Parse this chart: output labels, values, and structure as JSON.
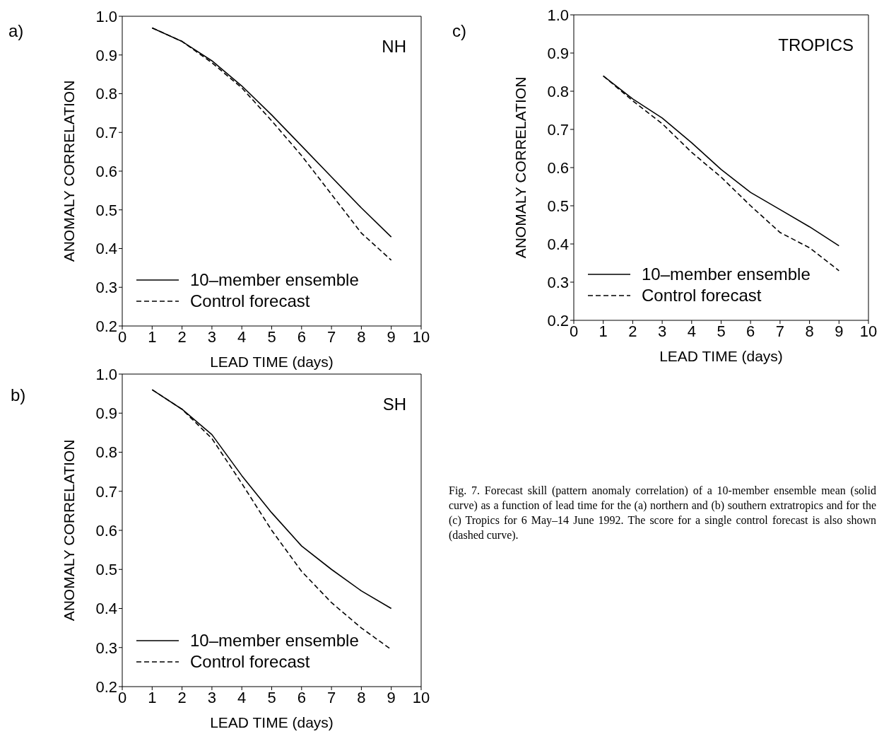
{
  "chart_data": [
    {
      "type": "line",
      "title": "a)",
      "xlabel": "LEAD TIME (days)",
      "ylabel": "ANOMALY CORRELATION",
      "annotations": [
        "NH"
      ],
      "x": [
        1,
        2,
        3,
        4,
        5,
        6,
        7,
        8,
        9
      ],
      "xlim": [
        0,
        10
      ],
      "xticks": [
        0,
        1,
        2,
        3,
        4,
        5,
        6,
        7,
        8,
        9,
        10
      ],
      "ylim": [
        0.2,
        1.0
      ],
      "yticks": [
        {
          "value": 0.2,
          "label": "0.2"
        },
        {
          "value": 0.3,
          "label": "0.3"
        },
        {
          "value": 0.4,
          "label": "0.4"
        },
        {
          "value": 0.5,
          "label": "0.5"
        },
        {
          "value": 0.6,
          "label": "0.6"
        },
        {
          "value": 0.7,
          "label": "0.7"
        },
        {
          "value": 0.8,
          "label": "0.8"
        },
        {
          "value": 0.9,
          "label": "0.9"
        },
        {
          "value": 1.0,
          "label": "1.0"
        }
      ],
      "legend": "bottom left",
      "marker": "none",
      "series": [
        {
          "name": "10–member ensemble",
          "color": "#000000",
          "line_style": "solid",
          "values": [
            0.97,
            0.935,
            0.885,
            0.82,
            0.745,
            0.665,
            0.585,
            0.505,
            0.43
          ]
        },
        {
          "name": "Control forecast",
          "color": "#000000",
          "line_style": "dashed",
          "values": [
            0.97,
            0.935,
            0.88,
            0.815,
            0.73,
            0.64,
            0.54,
            0.44,
            0.37
          ]
        }
      ]
    },
    {
      "type": "line",
      "title": "c)",
      "xlabel": "LEAD TIME (days)",
      "ylabel": "ANOMALY CORRELATION",
      "annotations": [
        "TROPICS"
      ],
      "x": [
        1,
        2,
        3,
        4,
        5,
        6,
        7,
        8,
        9
      ],
      "xlim": [
        0,
        10
      ],
      "xticks": [
        0,
        1,
        2,
        3,
        4,
        5,
        6,
        7,
        8,
        9,
        10
      ],
      "ylim": [
        0.2,
        1.0
      ],
      "yticks": [
        {
          "value": 0.2,
          "label": "0.2"
        },
        {
          "value": 0.3,
          "label": "0.3"
        },
        {
          "value": 0.4,
          "label": "0.4"
        },
        {
          "value": 0.5,
          "label": "0.5"
        },
        {
          "value": 0.6,
          "label": "0.6"
        },
        {
          "value": 0.7,
          "label": "0.7"
        },
        {
          "value": 0.8,
          "label": "0.8"
        },
        {
          "value": 0.9,
          "label": "0.9"
        },
        {
          "value": 1.0,
          "label": "1.0"
        }
      ],
      "legend": "bottom left",
      "marker": "none",
      "series": [
        {
          "name": "10–member ensemble",
          "color": "#000000",
          "line_style": "solid",
          "values": [
            0.84,
            0.78,
            0.73,
            0.665,
            0.595,
            0.535,
            0.49,
            0.445,
            0.395
          ]
        },
        {
          "name": "Control forecast",
          "color": "#000000",
          "line_style": "dashed",
          "values": [
            0.84,
            0.775,
            0.715,
            0.64,
            0.575,
            0.5,
            0.43,
            0.39,
            0.33
          ]
        }
      ]
    },
    {
      "type": "line",
      "title": "b)",
      "xlabel": "LEAD TIME (days)",
      "ylabel": "ANOMALY CORRELATION",
      "annotations": [
        "SH",
        "Fig. 7. Forecast skill (pattern anomaly correlation) of a 10-member ensemble mean (solid curve) as a function of lead time for the (a) northern and (b) southern extratropics and for the (c) Tropics for 6 May–14 June 1992. The score for a single control forecast is also shown (dashed curve)."
      ],
      "x": [
        1,
        2,
        3,
        4,
        5,
        6,
        7,
        8,
        9
      ],
      "xlim": [
        0,
        10
      ],
      "xticks": [
        0,
        1,
        2,
        3,
        4,
        5,
        6,
        7,
        8,
        9,
        10
      ],
      "ylim": [
        0.2,
        1.0
      ],
      "yticks": [
        {
          "value": 0.2,
          "label": "0.2"
        },
        {
          "value": 0.3,
          "label": "0.3"
        },
        {
          "value": 0.4,
          "label": "0.4"
        },
        {
          "value": 0.5,
          "label": "0.5"
        },
        {
          "value": 0.6,
          "label": "0.6"
        },
        {
          "value": 0.7,
          "label": "0.7"
        },
        {
          "value": 0.8,
          "label": "0.8"
        },
        {
          "value": 0.9,
          "label": "0.9"
        },
        {
          "value": 1.0,
          "label": "1.0"
        }
      ],
      "legend": "bottom left",
      "marker": "none",
      "series": [
        {
          "name": "10–member ensemble",
          "color": "#000000",
          "line_style": "solid",
          "values": [
            0.96,
            0.91,
            0.845,
            0.74,
            0.645,
            0.56,
            0.5,
            0.445,
            0.4
          ]
        },
        {
          "name": "Control forecast",
          "color": "#000000",
          "line_style": "dashed",
          "values": [
            0.96,
            0.91,
            0.835,
            0.72,
            0.6,
            0.495,
            0.415,
            0.35,
            0.295
          ]
        }
      ]
    }
  ]
}
